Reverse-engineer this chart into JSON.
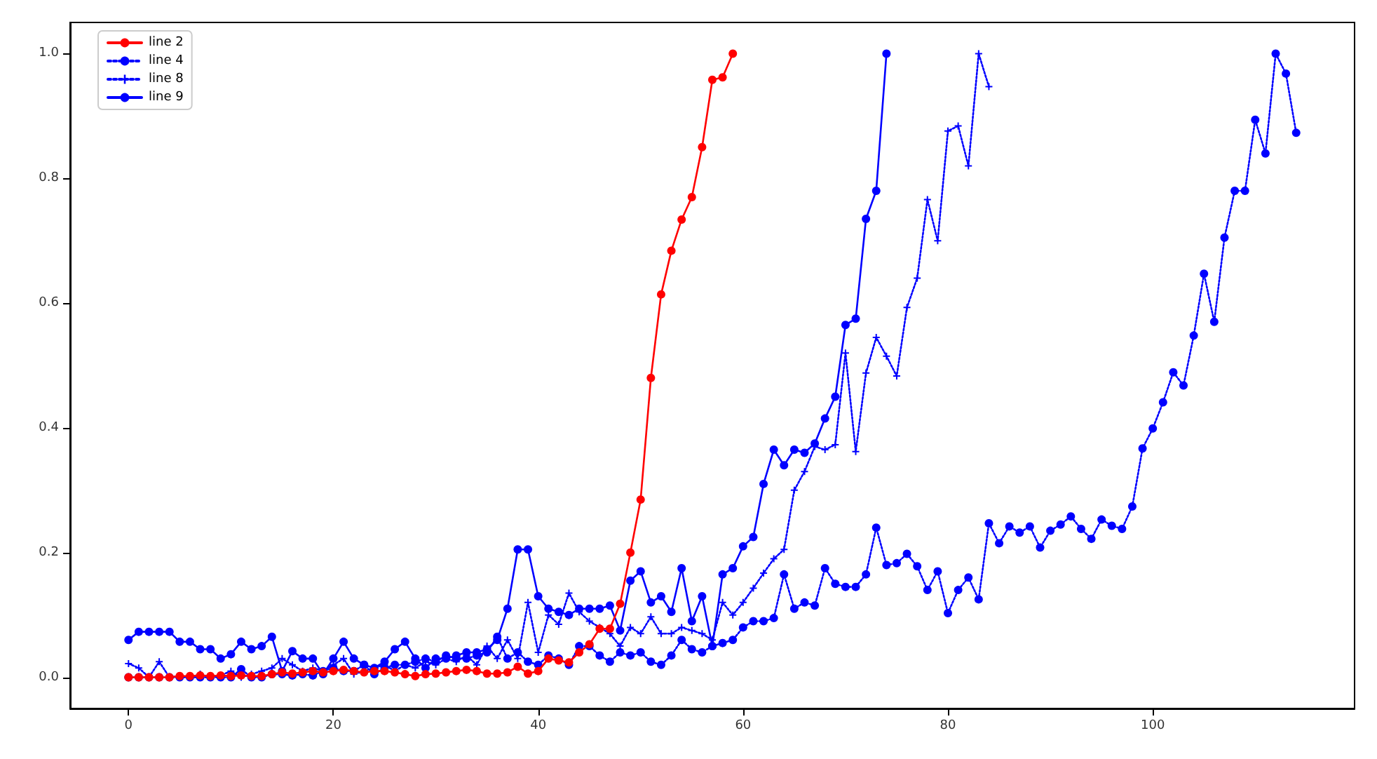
{
  "chart_data": {
    "type": "line",
    "xlim": [
      -5.7,
      119.7
    ],
    "xticks": [
      0,
      20,
      40,
      60,
      80,
      100
    ],
    "ylim": [
      -0.05,
      1.05
    ],
    "yticks": [
      {
        "value": 0,
        "label": "0.0"
      },
      {
        "value": 0.2,
        "label": "0.2"
      },
      {
        "value": 0.4,
        "label": "0.4"
      },
      {
        "value": 0.6,
        "label": "0.6"
      },
      {
        "value": 0.8,
        "label": "0.8"
      },
      {
        "value": 1,
        "label": "1.0"
      }
    ],
    "grid": false,
    "legend": "top left",
    "series": [
      {
        "name": "line 2",
        "color": "#ff0000",
        "marker": "circle",
        "line_style": "solid",
        "x": [
          0,
          1,
          2,
          3,
          4,
          5,
          6,
          7,
          8,
          9,
          10,
          11,
          12,
          13,
          14,
          15,
          16,
          17,
          18,
          19,
          20,
          21,
          22,
          23,
          24,
          25,
          26,
          27,
          28,
          29,
          30,
          31,
          32,
          33,
          34,
          35,
          36,
          37,
          38,
          39,
          40,
          41,
          42,
          43,
          44,
          45,
          46,
          47,
          48,
          49,
          50,
          51,
          52,
          53,
          54,
          55,
          56,
          57,
          58,
          59
        ],
        "values": [
          0,
          0,
          0,
          0,
          0,
          0.002,
          0.002,
          0.003,
          0.002,
          0.003,
          0.002,
          0.003,
          0.002,
          0.002,
          0.005,
          0.008,
          0.006,
          0.008,
          0.01,
          0.008,
          0.01,
          0.012,
          0.01,
          0.008,
          0.01,
          0.01,
          0.008,
          0.005,
          0.002,
          0.005,
          0.006,
          0.008,
          0.01,
          0.012,
          0.01,
          0.006,
          0.006,
          0.008,
          0.017,
          0.006,
          0.01,
          0.03,
          0.027,
          0.024,
          0.04,
          0.053,
          0.078,
          0.078,
          0.118,
          0.2,
          0.285,
          0.48,
          0.614,
          0.684,
          0.734,
          0.77,
          0.85,
          0.958,
          0.962,
          1.0
        ]
      },
      {
        "name": "line 4",
        "color": "#0000ff",
        "marker": "circle",
        "line_style": "dotted",
        "x": [
          0,
          1,
          2,
          3,
          4,
          5,
          6,
          7,
          8,
          9,
          10,
          11,
          12,
          13,
          14,
          15,
          16,
          17,
          18,
          19,
          20,
          21,
          22,
          23,
          24,
          25,
          26,
          27,
          28,
          29,
          30,
          31,
          32,
          33,
          34,
          35,
          36,
          37,
          38,
          39,
          40,
          41,
          42,
          43,
          44,
          45,
          46,
          47,
          48,
          49,
          50,
          51,
          52,
          53,
          54,
          55,
          56,
          57,
          58,
          59,
          60,
          61,
          62,
          63,
          64,
          65,
          66,
          67,
          68,
          69,
          70,
          71,
          72,
          73,
          74,
          75,
          76,
          77,
          78,
          79,
          80,
          81,
          82,
          83,
          84,
          85,
          86,
          87,
          88,
          89,
          90,
          91,
          92,
          93,
          94,
          95,
          96,
          97,
          98,
          99,
          100,
          101,
          102,
          103,
          104,
          105,
          106,
          107,
          108,
          109,
          110,
          111,
          112,
          113,
          114
        ],
        "values": [
          0,
          0,
          0,
          0,
          0,
          0,
          0,
          0,
          0,
          0,
          0,
          0.013,
          0,
          0,
          0.005,
          0.005,
          0.003,
          0.005,
          0.003,
          0.01,
          0.015,
          0.01,
          0.01,
          0.02,
          0.005,
          0.015,
          0.02,
          0.02,
          0.025,
          0.03,
          0.025,
          0.035,
          0.03,
          0.03,
          0.035,
          0.04,
          0.065,
          0.03,
          0.04,
          0.025,
          0.02,
          0.035,
          0.03,
          0.02,
          0.05,
          0.05,
          0.035,
          0.025,
          0.04,
          0.035,
          0.04,
          0.025,
          0.02,
          0.035,
          0.06,
          0.045,
          0.04,
          0.05,
          0.055,
          0.06,
          0.08,
          0.09,
          0.09,
          0.095,
          0.165,
          0.11,
          0.12,
          0.115,
          0.175,
          0.15,
          0.145,
          0.145,
          0.165,
          0.24,
          0.18,
          0.183,
          0.198,
          0.178,
          0.14,
          0.17,
          0.103,
          0.14,
          0.16,
          0.125,
          0.247,
          0.215,
          0.242,
          0.232,
          0.242,
          0.208,
          0.235,
          0.245,
          0.258,
          0.238,
          0.222,
          0.253,
          0.243,
          0.238,
          0.274,
          0.367,
          0.399,
          0.441,
          0.489,
          0.468,
          0.548,
          0.647,
          0.57,
          0.705,
          0.78,
          0.78,
          0.894,
          0.84,
          1.0,
          0.968,
          0.873
        ]
      },
      {
        "name": "line 8",
        "color": "#0000ff",
        "marker": "cross",
        "line_style": "dotted",
        "x": [
          0,
          1,
          2,
          3,
          4,
          5,
          6,
          7,
          8,
          9,
          10,
          11,
          12,
          13,
          14,
          15,
          16,
          17,
          18,
          19,
          20,
          21,
          22,
          23,
          24,
          25,
          26,
          27,
          28,
          29,
          30,
          31,
          32,
          33,
          34,
          35,
          36,
          37,
          38,
          39,
          40,
          41,
          42,
          43,
          44,
          45,
          46,
          47,
          48,
          49,
          50,
          51,
          52,
          53,
          54,
          55,
          56,
          57,
          58,
          59,
          60,
          61,
          62,
          63,
          64,
          65,
          66,
          67,
          68,
          69,
          70,
          71,
          72,
          73,
          74,
          75,
          76,
          77,
          78,
          79,
          80,
          81,
          82,
          83,
          84
        ],
        "values": [
          0.022,
          0.015,
          0,
          0.025,
          0,
          0.002,
          0,
          0.005,
          0,
          0.003,
          0.01,
          0,
          0.005,
          0.01,
          0.015,
          0.03,
          0.02,
          0.01,
          0.015,
          0.01,
          0.02,
          0.03,
          0.005,
          0.01,
          0.015,
          0.02,
          0.01,
          0.02,
          0.015,
          0.025,
          0.02,
          0.03,
          0.025,
          0.035,
          0.02,
          0.05,
          0.03,
          0.06,
          0.03,
          0.12,
          0.04,
          0.1,
          0.085,
          0.135,
          0.105,
          0.09,
          0.08,
          0.07,
          0.05,
          0.08,
          0.07,
          0.097,
          0.07,
          0.07,
          0.08,
          0.075,
          0.07,
          0.06,
          0.12,
          0.1,
          0.12,
          0.143,
          0.167,
          0.19,
          0.205,
          0.3,
          0.33,
          0.37,
          0.365,
          0.373,
          0.52,
          0.362,
          0.488,
          0.545,
          0.515,
          0.483,
          0.593,
          0.64,
          0.766,
          0.7,
          0.876,
          0.884,
          0.82,
          1.0,
          0.947
        ]
      },
      {
        "name": "line 9",
        "color": "#0000ff",
        "marker": "circle",
        "line_style": "solid",
        "x": [
          0,
          1,
          2,
          3,
          4,
          5,
          6,
          7,
          8,
          9,
          10,
          11,
          12,
          13,
          14,
          15,
          16,
          17,
          18,
          19,
          20,
          21,
          22,
          23,
          24,
          25,
          26,
          27,
          28,
          29,
          30,
          31,
          32,
          33,
          34,
          35,
          36,
          37,
          38,
          39,
          40,
          41,
          42,
          43,
          44,
          45,
          46,
          47,
          48,
          49,
          50,
          51,
          52,
          53,
          54,
          55,
          56,
          57,
          58,
          59,
          60,
          61,
          62,
          63,
          64,
          65,
          66,
          67,
          68,
          69,
          70,
          71,
          72,
          73,
          74
        ],
        "values": [
          0.06,
          0.073,
          0.073,
          0.073,
          0.073,
          0.057,
          0.057,
          0.045,
          0.045,
          0.03,
          0.037,
          0.057,
          0.045,
          0.05,
          0.065,
          0.01,
          0.042,
          0.03,
          0.03,
          0.005,
          0.03,
          0.057,
          0.03,
          0.02,
          0.015,
          0.025,
          0.045,
          0.057,
          0.03,
          0.015,
          0.03,
          0.03,
          0.035,
          0.04,
          0.04,
          0.045,
          0.06,
          0.11,
          0.205,
          0.205,
          0.13,
          0.11,
          0.105,
          0.1,
          0.11,
          0.11,
          0.11,
          0.115,
          0.075,
          0.155,
          0.17,
          0.12,
          0.13,
          0.105,
          0.175,
          0.09,
          0.13,
          0.05,
          0.165,
          0.175,
          0.21,
          0.225,
          0.31,
          0.365,
          0.34,
          0.365,
          0.36,
          0.375,
          0.415,
          0.45,
          0.565,
          0.575,
          0.735,
          0.78,
          1.0
        ]
      }
    ]
  }
}
